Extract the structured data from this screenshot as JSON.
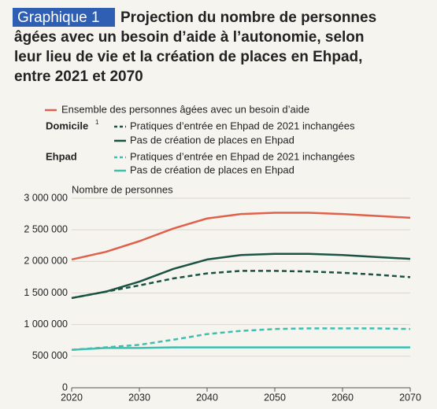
{
  "chart_data": {
    "type": "line",
    "badge": "Graphique 1",
    "title": [
      "Projection du nombre de personnes",
      "âgées avec un besoin d’aide à l’autonomie, selon",
      "leur lieu de vie et la création de places en Ehpad,",
      "entre 2021 et 2070"
    ],
    "y_label": "Nombre de personnes",
    "legend_groups": [
      {
        "label": "Domicile",
        "note": "1"
      },
      {
        "label": "Ehpad"
      }
    ],
    "x": [
      2020,
      2025,
      2030,
      2035,
      2040,
      2045,
      2050,
      2055,
      2060,
      2065,
      2070
    ],
    "series": [
      {
        "name": "Ensemble des personnes âgées avec un besoin d’aide",
        "color": "#e0604a",
        "dashed": false,
        "values": [
          2030000,
          2150000,
          2320000,
          2520000,
          2680000,
          2750000,
          2770000,
          2770000,
          2750000,
          2720000,
          2690000
        ]
      },
      {
        "name": "Pratiques d’entrée en Ehpad de 2021 inchangées",
        "color": "#1b5245",
        "dashed": true,
        "values": [
          1420000,
          1520000,
          1620000,
          1730000,
          1810000,
          1850000,
          1850000,
          1840000,
          1820000,
          1790000,
          1750000
        ]
      },
      {
        "name": "Pas de création de places en Ehpad",
        "color": "#1b5245",
        "dashed": false,
        "values": [
          1420000,
          1520000,
          1680000,
          1880000,
          2030000,
          2100000,
          2120000,
          2120000,
          2100000,
          2070000,
          2040000
        ]
      },
      {
        "name": "Pratiques d’entrée en Ehpad de 2021 inchangées",
        "color": "#3fbfb0",
        "dashed": true,
        "values": [
          600000,
          640000,
          680000,
          760000,
          850000,
          900000,
          930000,
          940000,
          940000,
          940000,
          930000
        ]
      },
      {
        "name": "Pas de création de places en Ehpad",
        "color": "#3fbfb0",
        "dashed": false,
        "values": [
          600000,
          630000,
          630000,
          640000,
          640000,
          640000,
          640000,
          640000,
          640000,
          640000,
          640000
        ]
      }
    ],
    "xlim": [
      2020,
      2070
    ],
    "xticks": [
      2020,
      2030,
      2040,
      2050,
      2060,
      2070
    ],
    "ylim": [
      0,
      3000000
    ],
    "yticks": [
      0,
      {
        "value": 500000,
        "label": "500 000"
      },
      {
        "value": 1000000,
        "label": "1 000 000"
      },
      {
        "value": 1500000,
        "label": "1 500 000"
      },
      {
        "value": 2000000,
        "label": "2 000 000"
      },
      {
        "value": 2500000,
        "label": "2 500 000"
      },
      {
        "value": 3000000,
        "label": "3 000 000"
      }
    ],
    "grid": true
  }
}
